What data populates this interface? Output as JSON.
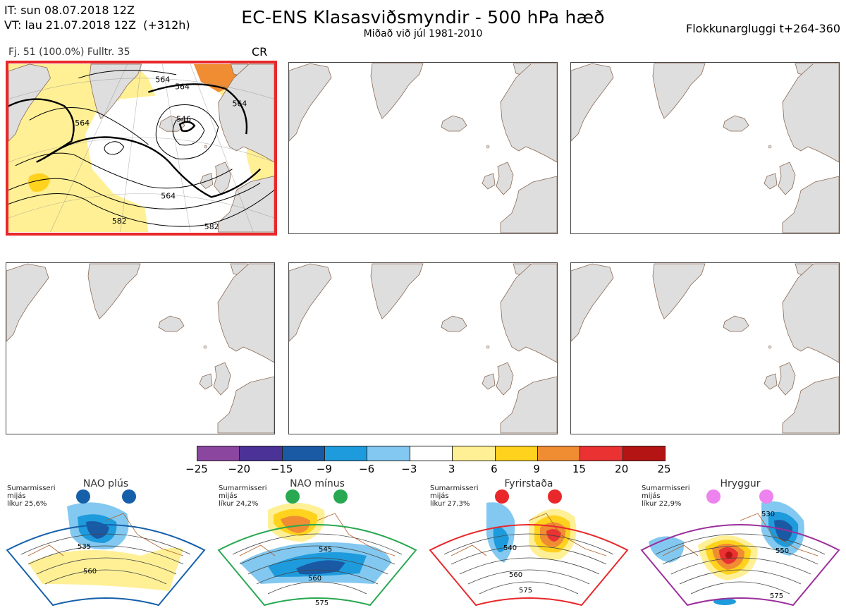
{
  "header": {
    "init_line": "IT: sun 08.07.2018 12Z",
    "valid_line": "VT: lau 21.07.2018 12Z  (+312h)",
    "title": "EC-ENS Klasasviðsmyndir - 500 hPa hæð",
    "subtitle": "Miðað við júl 1981-2010",
    "window": "Flokkunargluggi t+264-360"
  },
  "cluster": {
    "info": "Fj. 51 (100.0%)   Fulltr. 35",
    "regime_code": "CR",
    "contour_labels": [
      "564",
      "564",
      "564",
      "546",
      "564",
      "582",
      "582",
      "564"
    ]
  },
  "colorbar": {
    "colors": [
      "#8b46a0",
      "#4b3296",
      "#1a5aa5",
      "#1e9bdc",
      "#82c8f0",
      "#ffffff",
      "#fff096",
      "#ffd21e",
      "#f08c32",
      "#ea3232",
      "#b41414"
    ],
    "ticks": [
      "−25",
      "−20",
      "−15",
      "−9",
      "−6",
      "−3",
      "3",
      "6",
      "9",
      "15",
      "20",
      "25"
    ]
  },
  "regimes": [
    {
      "name": "NAO plús",
      "season": "Sumarmisseri",
      "mean": "mijás",
      "prob": "líkur 25,6%",
      "color": "#1660aa",
      "labels": [
        "535",
        "560"
      ]
    },
    {
      "name": "NAO mínus",
      "season": "Sumarmisseri",
      "mean": "mijás",
      "prob": "líkur 24,2%",
      "color": "#28a850",
      "labels": [
        "545",
        "560",
        "575"
      ]
    },
    {
      "name": "Fyrirstaða",
      "season": "Sumarmisseri",
      "mean": "mijás",
      "prob": "líkur 27,3%",
      "color": "#e8282a",
      "labels": [
        "540",
        "560",
        "575"
      ]
    },
    {
      "name": "Hryggur",
      "season": "Sumarmisseri",
      "mean": "mijás",
      "prob": "líkur 22,9%",
      "color": "#ee82ee",
      "labels": [
        "530",
        "550",
        "575"
      ]
    }
  ]
}
